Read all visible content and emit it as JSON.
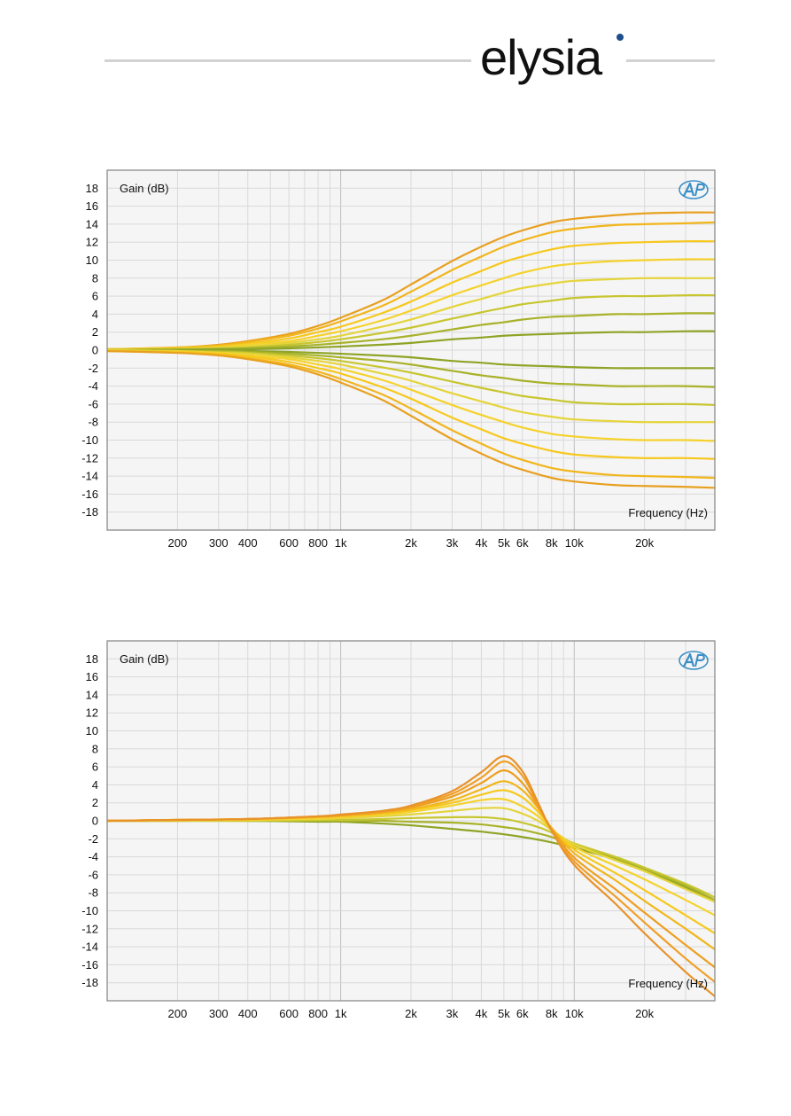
{
  "brand": {
    "name": "elysia",
    "text_color": "#111111",
    "dot_color": "#1d4f8c",
    "line_color": "#d2d2d2"
  },
  "badge_icon": "ap-logo-icon",
  "chart_data": [
    {
      "type": "line",
      "title": "",
      "xlabel": "Frequency (Hz)",
      "ylabel": "Gain (dB)",
      "xscale": "log",
      "xlim": [
        100,
        40000
      ],
      "ylim": [
        -20,
        20
      ],
      "yticks": [
        18,
        16,
        14,
        12,
        10,
        8,
        6,
        4,
        2,
        0,
        -2,
        -4,
        -6,
        -8,
        -10,
        -12,
        -14,
        -16,
        -18
      ],
      "xtick_labels": [
        {
          "value": 200,
          "label": "200"
        },
        {
          "value": 300,
          "label": "300"
        },
        {
          "value": 400,
          "label": "400"
        },
        {
          "value": 600,
          "label": "600"
        },
        {
          "value": 800,
          "label": "800"
        },
        {
          "value": 1000,
          "label": "1k"
        },
        {
          "value": 2000,
          "label": "2k"
        },
        {
          "value": 3000,
          "label": "3k"
        },
        {
          "value": 4000,
          "label": "4k"
        },
        {
          "value": 5000,
          "label": "5k"
        },
        {
          "value": 6000,
          "label": "6k"
        },
        {
          "value": 8000,
          "label": "8k"
        },
        {
          "value": 10000,
          "label": "10k"
        },
        {
          "value": 20000,
          "label": "20k"
        }
      ],
      "grid": true,
      "legend": "none",
      "background": "#f5f5f5",
      "frame_color": "#8a8a8a",
      "x": [
        100,
        200,
        300,
        400,
        600,
        800,
        1000,
        1500,
        2000,
        3000,
        4000,
        5000,
        6000,
        8000,
        10000,
        15000,
        20000,
        30000,
        40000
      ],
      "series": [
        {
          "color": "#e8a020",
          "values": [
            0.1,
            0.3,
            0.6,
            1.0,
            1.8,
            2.7,
            3.6,
            5.5,
            7.3,
            9.9,
            11.5,
            12.6,
            13.3,
            14.2,
            14.6,
            15.0,
            15.2,
            15.3,
            15.3
          ]
        },
        {
          "color": "#f2b61c",
          "values": [
            0.1,
            0.3,
            0.5,
            0.9,
            1.6,
            2.4,
            3.2,
            4.9,
            6.5,
            8.9,
            10.4,
            11.5,
            12.2,
            13.1,
            13.5,
            13.9,
            14.0,
            14.1,
            14.2
          ]
        },
        {
          "color": "#f7c81c",
          "values": [
            0.1,
            0.2,
            0.4,
            0.7,
            1.3,
            2.0,
            2.6,
            4.1,
            5.4,
            7.5,
            8.8,
            9.8,
            10.4,
            11.2,
            11.6,
            11.9,
            12.0,
            12.1,
            12.1
          ]
        },
        {
          "color": "#f5d22c",
          "values": [
            0.1,
            0.2,
            0.3,
            0.6,
            1.0,
            1.6,
            2.1,
            3.3,
            4.4,
            6.1,
            7.2,
            8.0,
            8.6,
            9.3,
            9.6,
            9.9,
            10.0,
            10.1,
            10.1
          ]
        },
        {
          "color": "#e5d43a",
          "values": [
            0.0,
            0.1,
            0.3,
            0.4,
            0.8,
            1.2,
            1.6,
            2.6,
            3.4,
            4.8,
            5.7,
            6.4,
            6.9,
            7.4,
            7.7,
            7.9,
            8.0,
            8.0,
            8.0
          ]
        },
        {
          "color": "#c8c630",
          "values": [
            0.0,
            0.1,
            0.2,
            0.3,
            0.6,
            0.9,
            1.2,
            1.9,
            2.5,
            3.5,
            4.2,
            4.7,
            5.1,
            5.5,
            5.8,
            6.0,
            6.0,
            6.1,
            6.1
          ]
        },
        {
          "color": "#a8b22a",
          "values": [
            0.0,
            0.1,
            0.1,
            0.2,
            0.4,
            0.6,
            0.8,
            1.2,
            1.6,
            2.3,
            2.8,
            3.1,
            3.4,
            3.7,
            3.8,
            4.0,
            4.0,
            4.1,
            4.1
          ]
        },
        {
          "color": "#8ea426",
          "values": [
            0.0,
            0.0,
            0.1,
            0.1,
            0.2,
            0.3,
            0.4,
            0.6,
            0.8,
            1.2,
            1.4,
            1.6,
            1.7,
            1.8,
            1.9,
            2.0,
            2.0,
            2.1,
            2.1
          ]
        },
        {
          "color": "#8ea426",
          "values": [
            0.0,
            0.0,
            -0.1,
            -0.1,
            -0.2,
            -0.3,
            -0.4,
            -0.6,
            -0.8,
            -1.2,
            -1.4,
            -1.6,
            -1.7,
            -1.8,
            -1.9,
            -2.0,
            -2.0,
            -2.0,
            -2.0
          ]
        },
        {
          "color": "#a8b22a",
          "values": [
            0.0,
            -0.1,
            -0.1,
            -0.2,
            -0.4,
            -0.6,
            -0.8,
            -1.2,
            -1.6,
            -2.3,
            -2.8,
            -3.1,
            -3.4,
            -3.7,
            -3.8,
            -4.0,
            -4.0,
            -4.0,
            -4.1
          ]
        },
        {
          "color": "#c8c630",
          "values": [
            0.0,
            -0.1,
            -0.2,
            -0.3,
            -0.6,
            -0.9,
            -1.2,
            -1.9,
            -2.5,
            -3.5,
            -4.2,
            -4.7,
            -5.1,
            -5.5,
            -5.8,
            -6.0,
            -6.0,
            -6.0,
            -6.1
          ]
        },
        {
          "color": "#e5d43a",
          "values": [
            0.0,
            -0.1,
            -0.3,
            -0.4,
            -0.8,
            -1.2,
            -1.6,
            -2.6,
            -3.4,
            -4.8,
            -5.7,
            -6.4,
            -6.9,
            -7.4,
            -7.7,
            -7.9,
            -8.0,
            -8.0,
            -8.0
          ]
        },
        {
          "color": "#f5d22c",
          "values": [
            -0.1,
            -0.2,
            -0.3,
            -0.6,
            -1.0,
            -1.6,
            -2.1,
            -3.3,
            -4.4,
            -6.1,
            -7.2,
            -8.0,
            -8.6,
            -9.3,
            -9.6,
            -9.9,
            -10.0,
            -10.0,
            -10.1
          ]
        },
        {
          "color": "#f7c81c",
          "values": [
            -0.1,
            -0.2,
            -0.4,
            -0.7,
            -1.3,
            -2.0,
            -2.6,
            -4.1,
            -5.4,
            -7.5,
            -8.8,
            -9.8,
            -10.4,
            -11.2,
            -11.6,
            -11.9,
            -12.0,
            -12.0,
            -12.1
          ]
        },
        {
          "color": "#f2b61c",
          "values": [
            -0.1,
            -0.3,
            -0.5,
            -0.9,
            -1.6,
            -2.4,
            -3.2,
            -4.9,
            -6.5,
            -8.9,
            -10.4,
            -11.5,
            -12.2,
            -13.1,
            -13.5,
            -13.9,
            -14.0,
            -14.1,
            -14.2
          ]
        },
        {
          "color": "#e8a020",
          "values": [
            -0.1,
            -0.3,
            -0.6,
            -1.0,
            -1.8,
            -2.7,
            -3.6,
            -5.5,
            -7.3,
            -9.9,
            -11.5,
            -12.6,
            -13.3,
            -14.2,
            -14.6,
            -15.0,
            -15.1,
            -15.2,
            -15.3
          ]
        }
      ]
    },
    {
      "type": "line",
      "title": "",
      "xlabel": "Frequency (Hz)",
      "ylabel": "Gain (dB)",
      "xscale": "log",
      "xlim": [
        100,
        40000
      ],
      "ylim": [
        -20,
        20
      ],
      "yticks": [
        18,
        16,
        14,
        12,
        10,
        8,
        6,
        4,
        2,
        0,
        -2,
        -4,
        -6,
        -8,
        -10,
        -12,
        -14,
        -16,
        -18
      ],
      "xtick_labels": [
        {
          "value": 200,
          "label": "200"
        },
        {
          "value": 300,
          "label": "300"
        },
        {
          "value": 400,
          "label": "400"
        },
        {
          "value": 600,
          "label": "600"
        },
        {
          "value": 800,
          "label": "800"
        },
        {
          "value": 1000,
          "label": "1k"
        },
        {
          "value": 2000,
          "label": "2k"
        },
        {
          "value": 3000,
          "label": "3k"
        },
        {
          "value": 4000,
          "label": "4k"
        },
        {
          "value": 5000,
          "label": "5k"
        },
        {
          "value": 6000,
          "label": "6k"
        },
        {
          "value": 8000,
          "label": "8k"
        },
        {
          "value": 10000,
          "label": "10k"
        },
        {
          "value": 20000,
          "label": "20k"
        }
      ],
      "grid": true,
      "legend": "none",
      "background": "#f5f5f5",
      "frame_color": "#8a8a8a",
      "x": [
        100,
        200,
        400,
        800,
        1000,
        1500,
        2000,
        3000,
        4000,
        5000,
        6000,
        7000,
        8000,
        10000,
        15000,
        20000,
        30000,
        40000
      ],
      "series": [
        {
          "color": "#8ea426",
          "values": [
            0.0,
            0.0,
            0.0,
            -0.1,
            -0.1,
            -0.3,
            -0.5,
            -0.9,
            -1.2,
            -1.5,
            -1.8,
            -2.1,
            -2.4,
            -3.0,
            -4.3,
            -5.5,
            -7.4,
            -9.0
          ]
        },
        {
          "color": "#a8b22a",
          "values": [
            0.0,
            0.0,
            0.0,
            0.0,
            0.0,
            0.0,
            -0.1,
            -0.2,
            -0.4,
            -0.7,
            -1.0,
            -1.4,
            -1.8,
            -2.7,
            -4.2,
            -5.4,
            -7.2,
            -8.8
          ]
        },
        {
          "color": "#c8c630",
          "values": [
            0.0,
            0.0,
            0.0,
            0.1,
            0.1,
            0.2,
            0.3,
            0.4,
            0.4,
            0.2,
            -0.2,
            -0.7,
            -1.3,
            -2.5,
            -4.0,
            -5.2,
            -7.0,
            -8.5
          ]
        },
        {
          "color": "#e5d43a",
          "values": [
            0.0,
            0.0,
            0.1,
            0.2,
            0.3,
            0.5,
            0.7,
            1.1,
            1.4,
            1.4,
            0.8,
            0.0,
            -1.0,
            -2.6,
            -4.4,
            -5.6,
            -7.6,
            -9.0
          ]
        },
        {
          "color": "#f5d22c",
          "values": [
            0.0,
            0.1,
            0.1,
            0.3,
            0.4,
            0.7,
            1.0,
            1.7,
            2.3,
            2.4,
            1.6,
            0.5,
            -0.9,
            -2.9,
            -5.0,
            -6.5,
            -8.8,
            -10.5
          ]
        },
        {
          "color": "#f7c81c",
          "values": [
            0.0,
            0.1,
            0.2,
            0.4,
            0.5,
            0.8,
            1.2,
            2.0,
            2.9,
            3.4,
            2.6,
            1.0,
            -0.8,
            -3.2,
            -5.8,
            -7.7,
            -10.5,
            -12.5
          ]
        },
        {
          "color": "#f2b61c",
          "values": [
            0.0,
            0.1,
            0.2,
            0.4,
            0.6,
            0.9,
            1.3,
            2.3,
            3.5,
            4.4,
            3.4,
            1.4,
            -0.8,
            -3.6,
            -6.6,
            -8.9,
            -12.0,
            -14.3
          ]
        },
        {
          "color": "#ee9e1e",
          "values": [
            0.0,
            0.1,
            0.2,
            0.5,
            0.6,
            1.0,
            1.5,
            2.7,
            4.2,
            5.6,
            4.2,
            1.6,
            -0.9,
            -4.1,
            -7.6,
            -10.2,
            -13.8,
            -16.3
          ]
        },
        {
          "color": "#f0a028",
          "values": [
            0.0,
            0.1,
            0.2,
            0.5,
            0.6,
            1.0,
            1.6,
            3.0,
            4.8,
            6.6,
            5.0,
            1.8,
            -1.0,
            -4.5,
            -8.4,
            -11.3,
            -15.3,
            -17.9
          ]
        },
        {
          "color": "#e8922a",
          "values": [
            0.0,
            0.1,
            0.2,
            0.5,
            0.7,
            1.1,
            1.7,
            3.3,
            5.4,
            7.2,
            5.5,
            2.0,
            -1.1,
            -4.9,
            -9.2,
            -12.5,
            -16.8,
            -19.5
          ]
        }
      ]
    }
  ]
}
